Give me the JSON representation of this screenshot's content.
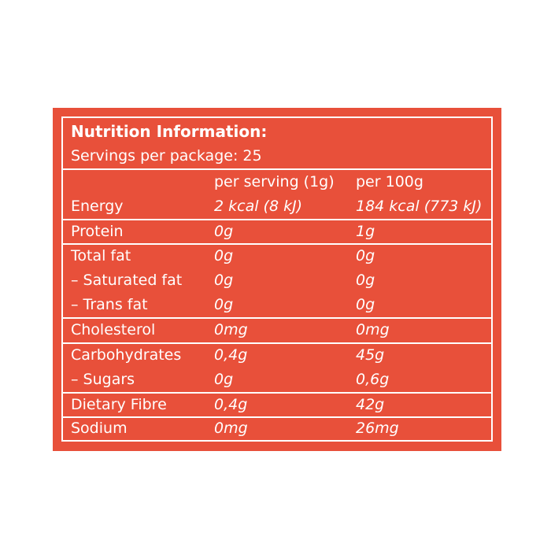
{
  "label": {
    "title": "Nutrition Information:",
    "servings": "Servings per package: 25",
    "col_per_serving": "per serving (1g)",
    "col_per_100g": "per 100g",
    "rows": [
      {
        "name": "Energy",
        "per_serving": "2 kcal (8 kJ)",
        "per_100g": "184 kcal (773 kJ)"
      },
      {
        "name": "Protein",
        "per_serving": "0g",
        "per_100g": "1g"
      },
      {
        "name": "Total fat",
        "per_serving": "0g",
        "per_100g": "0g"
      },
      {
        "name": "– Saturated fat",
        "per_serving": "0g",
        "per_100g": "0g"
      },
      {
        "name": "– Trans fat",
        "per_serving": "0g",
        "per_100g": "0g"
      },
      {
        "name": "Cholesterol",
        "per_serving": "0mg",
        "per_100g": "0mg"
      },
      {
        "name": "Carbohydrates",
        "per_serving": "0,4g",
        "per_100g": "45g"
      },
      {
        "name": "– Sugars",
        "per_serving": "0g",
        "per_100g": "0,6g"
      },
      {
        "name": "Dietary Fibre",
        "per_serving": "0,4g",
        "per_100g": "42g"
      },
      {
        "name": "Sodium",
        "per_serving": "0mg",
        "per_100g": "26mg"
      }
    ]
  },
  "colors": {
    "background": "#e8503a",
    "text": "#ffffff"
  }
}
